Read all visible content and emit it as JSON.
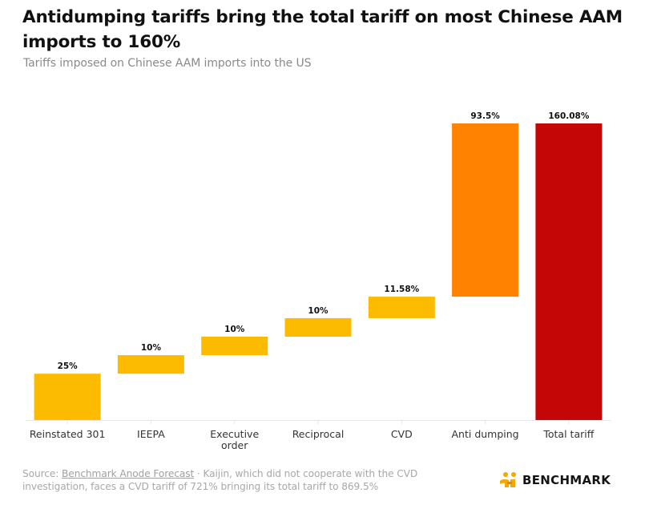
{
  "header": {
    "title": "Antidumping tariffs bring the total tariff on most Chinese AAM imports to 160%",
    "subtitle": "Tariffs imposed on Chinese AAM imports into the US"
  },
  "footer": {
    "source_prefix": "Source: ",
    "source_link": "Benchmark Anode Forecast",
    "note": " · Kaijin, which did not cooperate with the CVD investigation, faces a CVD tariff of 721% bringing its total tariff to 869.5%"
  },
  "logo": {
    "text": "BENCHMARK",
    "icon": "benchmark-logo-icon",
    "color": "#f5a800"
  },
  "colors": {
    "increment": "#fdbb00",
    "anti_dumping": "#ff8200",
    "total": "#c40606",
    "axis": "#e6e6e6",
    "label": "#333333"
  },
  "chart_data": {
    "type": "bar",
    "subtype": "waterfall",
    "title": "Antidumping tariffs bring the total tariff on most Chinese AAM imports to 160%",
    "subtitle": "Tariffs imposed on Chinese AAM imports into the US",
    "xlabel": "",
    "ylabel": "",
    "categories": [
      "Reinstated 301",
      "IEEPA",
      "Executive order",
      "Reciprocal",
      "CVD",
      "Anti dumping",
      "Total tariff"
    ],
    "category_lines": [
      [
        "Reinstated 301"
      ],
      [
        "IEEPA"
      ],
      [
        "Executive",
        "order"
      ],
      [
        "Reciprocal"
      ],
      [
        "CVD"
      ],
      [
        "Anti dumping"
      ],
      [
        "Total tariff"
      ]
    ],
    "values": [
      25,
      10,
      10,
      10,
      11.58,
      93.5,
      160.08
    ],
    "data_labels": [
      "25%",
      "10%",
      "10%",
      "10%",
      "11.58%",
      "93.5%",
      "160.08%"
    ],
    "kinds": [
      "increment",
      "increment",
      "increment",
      "increment",
      "increment",
      "anti_dumping",
      "total"
    ],
    "ylim": [
      0,
      160.08
    ],
    "grid": false,
    "y_axis_visible": false,
    "legend": "none"
  }
}
